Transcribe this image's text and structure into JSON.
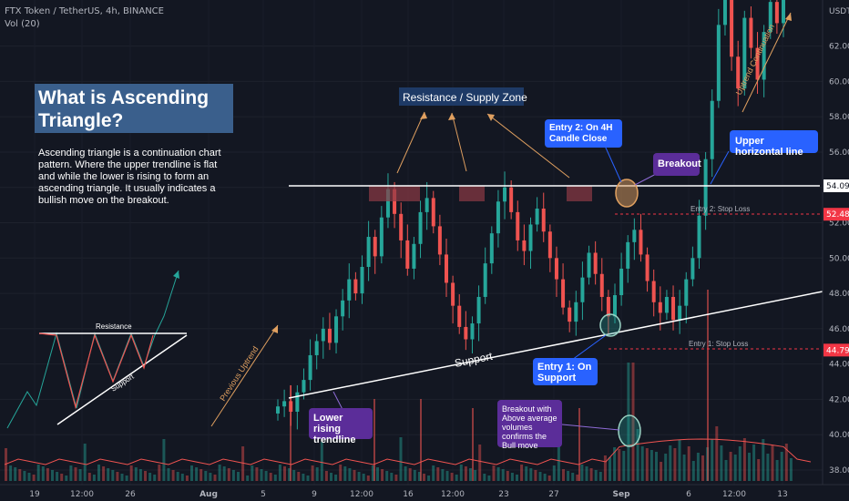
{
  "chart_data": {
    "type": "candlestick",
    "symbol_line": "FTX Token / TetherUS, 4h, BINANCE",
    "volume_line": "Vol (20)",
    "currency": "USDT",
    "y_ticks": [
      38.0,
      40.0,
      42.0,
      44.0,
      46.0,
      48.0,
      50.0,
      52.0,
      54.0,
      56.0,
      58.0,
      60.0,
      62.0
    ],
    "ylim": [
      37.0,
      65.0
    ],
    "x_ticks": [
      "19",
      "12:00",
      "26",
      "Aug",
      "5",
      "9",
      "12:00",
      "16",
      "12:00",
      "23",
      "27",
      "Sep",
      "6",
      "12:00",
      "13"
    ],
    "price_labels": [
      {
        "value": 54.09,
        "label": "54.09",
        "color": "#ffffff"
      },
      {
        "value": 52.48,
        "label": "52.48",
        "color": "#f23645"
      },
      {
        "value": 44.79,
        "label": "44.79",
        "color": "#f23645"
      }
    ],
    "levels": {
      "resistance": 54.09,
      "entry2_stop": 52.48,
      "entry1_stop": 44.79
    },
    "candles_close": [
      41.6,
      41.9,
      41.3,
      42.4,
      43.1,
      44.5,
      45.3,
      46.0,
      45.2,
      46.7,
      47.6,
      48.8,
      48.0,
      49.5,
      51.2,
      50.1,
      52.3,
      53.9,
      52.5,
      51.0,
      49.4,
      50.8,
      52.6,
      53.4,
      51.8,
      50.2,
      48.6,
      47.3,
      46.1,
      45.4,
      46.3,
      47.8,
      49.7,
      51.4,
      53.2,
      54.0,
      52.6,
      51.0,
      50.4,
      51.9,
      52.8,
      51.5,
      50.0,
      48.8,
      47.2,
      46.4,
      47.5,
      48.9,
      50.3,
      49.1,
      47.8,
      46.7,
      47.9,
      49.4,
      50.9,
      51.6,
      50.2,
      48.7,
      47.5,
      46.9,
      47.8,
      46.5,
      47.3,
      48.8,
      50.0,
      52.4,
      55.6,
      58.9,
      63.2,
      65.0,
      61.4,
      59.6,
      63.6,
      61.9,
      60.1,
      62.8,
      64.5,
      63.3,
      64.8
    ]
  },
  "title_card": "What is Ascending Triangle?",
  "description": "Ascending triangle is a continuation chart pattern. Where the upper trendline is flat and while the lower is rising to form an ascending triangle. It usually indicates a bullish move on the breakout.",
  "labels": {
    "resistance_zone": "Resistance / Supply Zone",
    "support": "Support",
    "mini_resistance": "Resistance",
    "mini_support": "Support",
    "previous_uptrend": "Previous Uptrend",
    "uptrend_continuation": "Uptrend Continuation",
    "entry2_stop": "Entry 2: Stop Loss",
    "entry1_stop": "Entry 1: Stop Loss"
  },
  "callouts": {
    "entry2": "Entry 2: On 4H Candle Close",
    "breakout": "Breakout",
    "upper_line": "Upper horizontal line",
    "entry1": "Entry 1: On Support",
    "lower_line": "Lower rising trendline",
    "volume_note": "Breakout with Above average volumes confirms the Bull move"
  },
  "colors": {
    "up": "#26a69a",
    "down": "#ef5350",
    "accent": "#2962ff",
    "purple": "#5b2d99",
    "orange_arrow": "#e0a060"
  }
}
